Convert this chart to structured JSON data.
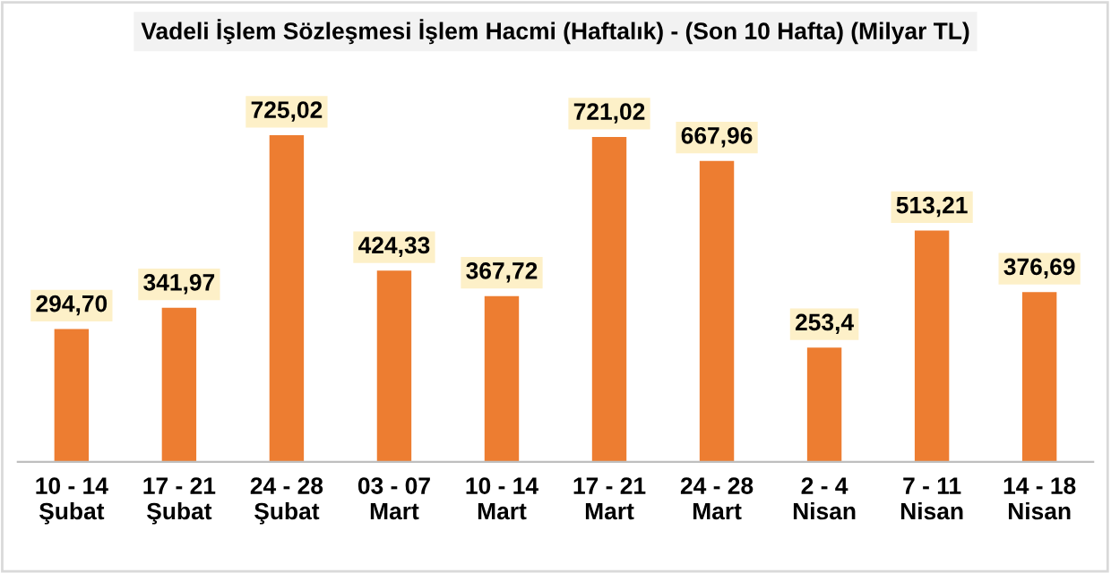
{
  "chart_data": {
    "type": "bar",
    "title": "Vadeli İşlem Sözleşmesi İşlem Hacmi (Haftalık) - (Son 10 Hafta) (Milyar TL)",
    "categories": [
      "10 - 14\nŞubat",
      "17 - 21\nŞubat",
      "24 - 28\nŞubat",
      "03 - 07\nMart",
      "10 - 14\nMart",
      "17 - 21\nMart",
      "24 - 28\nMart",
      "2 - 4\nNisan",
      "7 - 11\nNisan",
      "14 - 18\nNisan"
    ],
    "values": [
      294.7,
      341.97,
      725.02,
      424.33,
      367.72,
      721.02,
      667.96,
      253.4,
      513.21,
      376.69
    ],
    "value_labels": [
      "294,70",
      "341,97",
      "725,02",
      "424,33",
      "367,72",
      "721,02",
      "667,96",
      "253,4",
      "513,21",
      "376,69"
    ],
    "color": "#ed7d31",
    "grid": false,
    "legend": false
  }
}
